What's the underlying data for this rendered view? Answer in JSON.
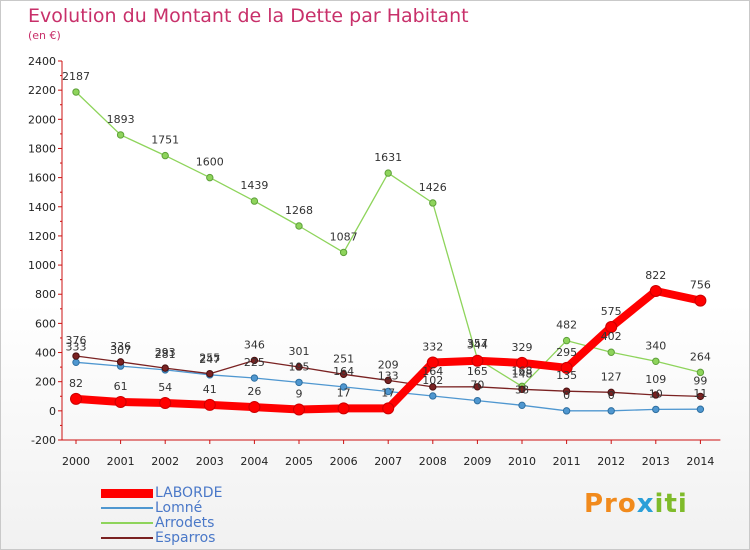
{
  "title": "Evolution du Montant de la Dette par Habitant",
  "subtitle": "(en €)",
  "logo": {
    "text": "Proxiti"
  },
  "chart_data": {
    "type": "line",
    "title": "Evolution du Montant de la Dette par Habitant",
    "subtitle": "(en €)",
    "x": [
      "2000",
      "2001",
      "2002",
      "2003",
      "2004",
      "2005",
      "2006",
      "2007",
      "2008",
      "2009",
      "2010",
      "2011",
      "2012",
      "2013",
      "2014"
    ],
    "ylim": [
      -200,
      2400
    ],
    "yticks": [
      -200,
      0,
      200,
      400,
      600,
      800,
      1000,
      1200,
      1400,
      1600,
      1800,
      2000,
      2200,
      2400
    ],
    "grid": false,
    "legend_position": "bottom-left",
    "series": [
      {
        "name": "LABORDE",
        "color": "#ff0000",
        "values": [
          82,
          61,
          54,
          41,
          26,
          9,
          17,
          17,
          332,
          344,
          329,
          295,
          575,
          822,
          756
        ]
      },
      {
        "name": "Lomné",
        "color": "#4f97d0",
        "values": [
          333,
          307,
          281,
          247,
          225,
          195,
          164,
          133,
          102,
          70,
          38,
          0,
          0,
          10,
          11
        ]
      },
      {
        "name": "Arrodets",
        "color": "#8ed45b",
        "values": [
          2187,
          1893,
          1751,
          1600,
          1439,
          1268,
          1087,
          1631,
          1426,
          357,
          168,
          482,
          402,
          340,
          264
        ]
      },
      {
        "name": "Esparros",
        "color": "#7a2222",
        "values": [
          376,
          336,
          293,
          255,
          346,
          301,
          251,
          209,
          164,
          165,
          148,
          135,
          127,
          109,
          99
        ]
      }
    ]
  }
}
